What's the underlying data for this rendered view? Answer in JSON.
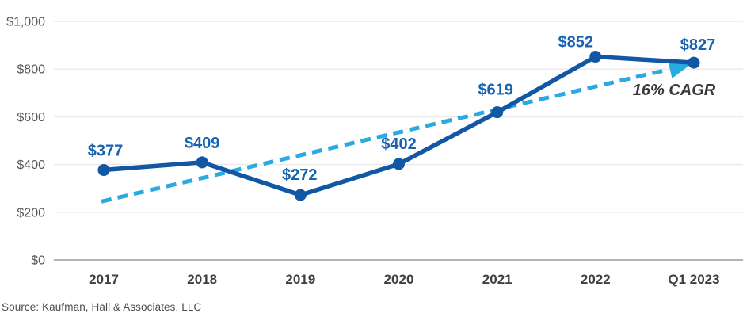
{
  "chart_data": {
    "type": "line",
    "categories": [
      "2017",
      "2018",
      "2019",
      "2020",
      "2021",
      "2022",
      "Q1 2023"
    ],
    "values": [
      377,
      409,
      272,
      402,
      619,
      852,
      827
    ],
    "point_labels": [
      "$377",
      "$409",
      "$272",
      "$402",
      "$619",
      "$852",
      "$827"
    ],
    "yticks": [
      {
        "value": 0,
        "label": "$0"
      },
      {
        "value": 200,
        "label": "$200"
      },
      {
        "value": 400,
        "label": "$400"
      },
      {
        "value": 600,
        "label": "$600"
      },
      {
        "value": 800,
        "label": "$800"
      },
      {
        "value": 1000,
        "label": "$1,000"
      }
    ],
    "ylim": [
      0,
      1000
    ],
    "grid": true,
    "legend": "none",
    "title": "",
    "xlabel": "",
    "ylabel": "",
    "trendline": {
      "label": "16% CAGR",
      "style": "dashed-arrow",
      "start_category": "2017",
      "start_value": 245,
      "end_category": "Q1 2023",
      "end_value": 820
    },
    "colors": {
      "series_line": "#1157a3",
      "series_label": "#1763b1",
      "trend_line": "#29abe2",
      "axis_text": "#58595b",
      "category_text": "#3e3f41",
      "cagr_text": "#3a3a3c",
      "gridline": "#e9e9e9",
      "zero_axis": "#a9a9a9"
    }
  },
  "source": {
    "text": "Source: Kaufman, Hall & Associates, LLC"
  }
}
